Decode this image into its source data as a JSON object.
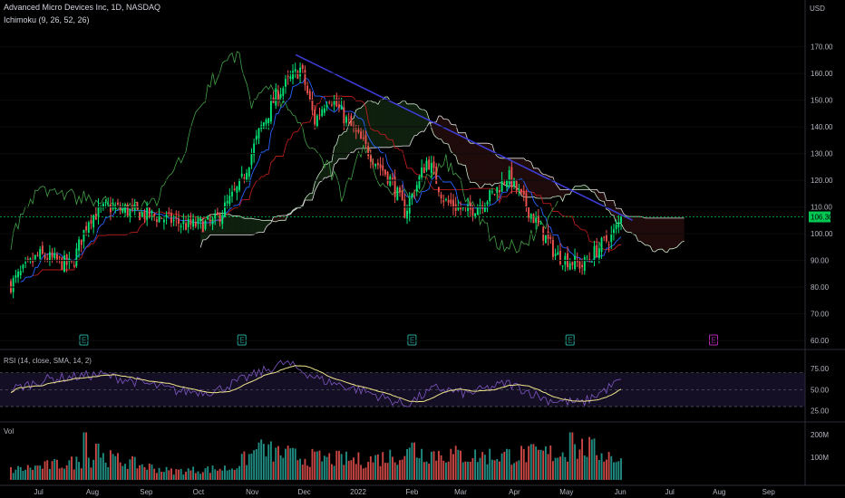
{
  "header": {
    "symbol_line": "Advanced Micro Devices Inc, 1D, NASDAQ",
    "indicator_line": "Ichimoku (9, 26, 52, 26)",
    "currency": "USD"
  },
  "price_axis": {
    "ticks": [
      "170.00",
      "160.00",
      "150.00",
      "140.00",
      "130.00",
      "120.00",
      "110.00",
      "100.00",
      "90.00",
      "80.00",
      "70.00",
      "60.00"
    ],
    "tick_values": [
      170,
      160,
      150,
      140,
      130,
      120,
      110,
      100,
      90,
      80,
      70,
      60
    ],
    "current_price_label": "106.30",
    "current_price": 106.3
  },
  "rsi_panel": {
    "label": "RSI (14, close, SMA, 14, 2)",
    "ticks": [
      "75.00",
      "50.00",
      "25.00"
    ],
    "tick_values": [
      75,
      50,
      25
    ],
    "upper_band": 70,
    "lower_band": 30
  },
  "volume_panel": {
    "label": "Vol",
    "ticks": [
      "200M",
      "100M"
    ],
    "tick_values": [
      200,
      100
    ]
  },
  "time_axis": {
    "labels": [
      "Jul",
      "Aug",
      "Sep",
      "Oct",
      "Nov",
      "Dec",
      "2022",
      "Feb",
      "Mar",
      "Apr",
      "May",
      "Jun",
      "Jul",
      "Aug",
      "Sep"
    ]
  },
  "earnings_markers": [
    "E",
    "E",
    "E",
    "E",
    "E"
  ],
  "colors": {
    "background": "#000000",
    "up": "#26a69a",
    "up_bright": "#00e676",
    "down": "#ef5350",
    "trendline": "#3d3dd9",
    "rsi_line": "#7e57c2",
    "rsi_ma": "#f0e68c",
    "price_tag": "#00c853",
    "conversion": "#2962ff",
    "base": "#b71c1c",
    "lagging": "#43a047",
    "cloud_bull": "#1b3a1b",
    "cloud_bear": "#3a1414",
    "upcoming_earnings": "#b026b0"
  },
  "chart_data": {
    "type": "candlestick",
    "symbol": "Advanced Micro Devices Inc",
    "interval": "1D",
    "exchange": "NASDAQ",
    "price_range": [
      58,
      178
    ],
    "price_anchors": [
      {
        "date": "2021-06-15",
        "close": 81
      },
      {
        "date": "2021-07-01",
        "close": 92
      },
      {
        "date": "2021-07-20",
        "close": 88
      },
      {
        "date": "2021-07-30",
        "close": 106
      },
      {
        "date": "2021-08-10",
        "close": 110
      },
      {
        "date": "2021-08-25",
        "close": 108
      },
      {
        "date": "2021-09-10",
        "close": 106
      },
      {
        "date": "2021-09-25",
        "close": 103
      },
      {
        "date": "2021-10-10",
        "close": 104
      },
      {
        "date": "2021-10-25",
        "close": 118
      },
      {
        "date": "2021-11-05",
        "close": 138
      },
      {
        "date": "2021-11-15",
        "close": 152
      },
      {
        "date": "2021-11-29",
        "close": 162
      },
      {
        "date": "2021-12-07",
        "close": 142
      },
      {
        "date": "2021-12-15",
        "close": 152
      },
      {
        "date": "2021-12-30",
        "close": 138
      },
      {
        "date": "2022-01-10",
        "close": 128
      },
      {
        "date": "2022-01-20",
        "close": 120
      },
      {
        "date": "2022-01-28",
        "close": 108
      },
      {
        "date": "2022-02-10",
        "close": 128
      },
      {
        "date": "2022-02-20",
        "close": 112
      },
      {
        "date": "2022-03-05",
        "close": 108
      },
      {
        "date": "2022-03-20",
        "close": 115
      },
      {
        "date": "2022-03-28",
        "close": 122
      },
      {
        "date": "2022-04-10",
        "close": 108
      },
      {
        "date": "2022-04-25",
        "close": 92
      },
      {
        "date": "2022-05-10",
        "close": 88
      },
      {
        "date": "2022-05-20",
        "close": 95
      },
      {
        "date": "2022-05-28",
        "close": 100
      },
      {
        "date": "2022-06-02",
        "close": 106.3
      }
    ],
    "trendline": {
      "from": {
        "date": "2021-11-26",
        "price": 167
      },
      "to": {
        "date": "2022-06-08",
        "price": 105
      }
    },
    "rsi_range": [
      15,
      90
    ],
    "rsi_anchors": [
      {
        "date": "2021-06-15",
        "value": 50
      },
      {
        "date": "2021-07-05",
        "value": 62
      },
      {
        "date": "2021-08-05",
        "value": 68
      },
      {
        "date": "2021-08-25",
        "value": 60
      },
      {
        "date": "2021-09-20",
        "value": 48
      },
      {
        "date": "2021-10-10",
        "value": 48
      },
      {
        "date": "2021-11-05",
        "value": 70
      },
      {
        "date": "2021-11-20",
        "value": 82
      },
      {
        "date": "2021-12-10",
        "value": 62
      },
      {
        "date": "2022-01-05",
        "value": 48
      },
      {
        "date": "2022-01-28",
        "value": 32
      },
      {
        "date": "2022-02-15",
        "value": 52
      },
      {
        "date": "2022-03-05",
        "value": 45
      },
      {
        "date": "2022-03-28",
        "value": 58
      },
      {
        "date": "2022-04-20",
        "value": 38
      },
      {
        "date": "2022-05-10",
        "value": 34
      },
      {
        "date": "2022-05-25",
        "value": 52
      },
      {
        "date": "2022-06-02",
        "value": 62
      }
    ],
    "volume_range": [
      0,
      240
    ],
    "volume_anchors": [
      {
        "date": "2021-06-15",
        "value": 45
      },
      {
        "date": "2021-07-25",
        "value": 85
      },
      {
        "date": "2021-08-05",
        "value": 110
      },
      {
        "date": "2021-09-15",
        "value": 40
      },
      {
        "date": "2021-10-20",
        "value": 55
      },
      {
        "date": "2021-11-05",
        "value": 140
      },
      {
        "date": "2021-11-29",
        "value": 105
      },
      {
        "date": "2022-01-05",
        "value": 90
      },
      {
        "date": "2022-02-02",
        "value": 130
      },
      {
        "date": "2022-03-10",
        "value": 110
      },
      {
        "date": "2022-04-28",
        "value": 125
      },
      {
        "date": "2022-05-12",
        "value": 150
      },
      {
        "date": "2022-06-02",
        "value": 95
      }
    ],
    "volume_peaks": [
      {
        "date": "2021-07-28",
        "value": 210
      },
      {
        "date": "2021-08-04",
        "value": 160
      },
      {
        "date": "2021-11-05",
        "value": 165
      },
      {
        "date": "2022-02-02",
        "value": 165
      },
      {
        "date": "2022-05-04",
        "value": 210
      }
    ],
    "earnings_dates": [
      "2021-07-27",
      "2021-10-26",
      "2022-02-01",
      "2022-05-03",
      "2022-08-02"
    ]
  }
}
